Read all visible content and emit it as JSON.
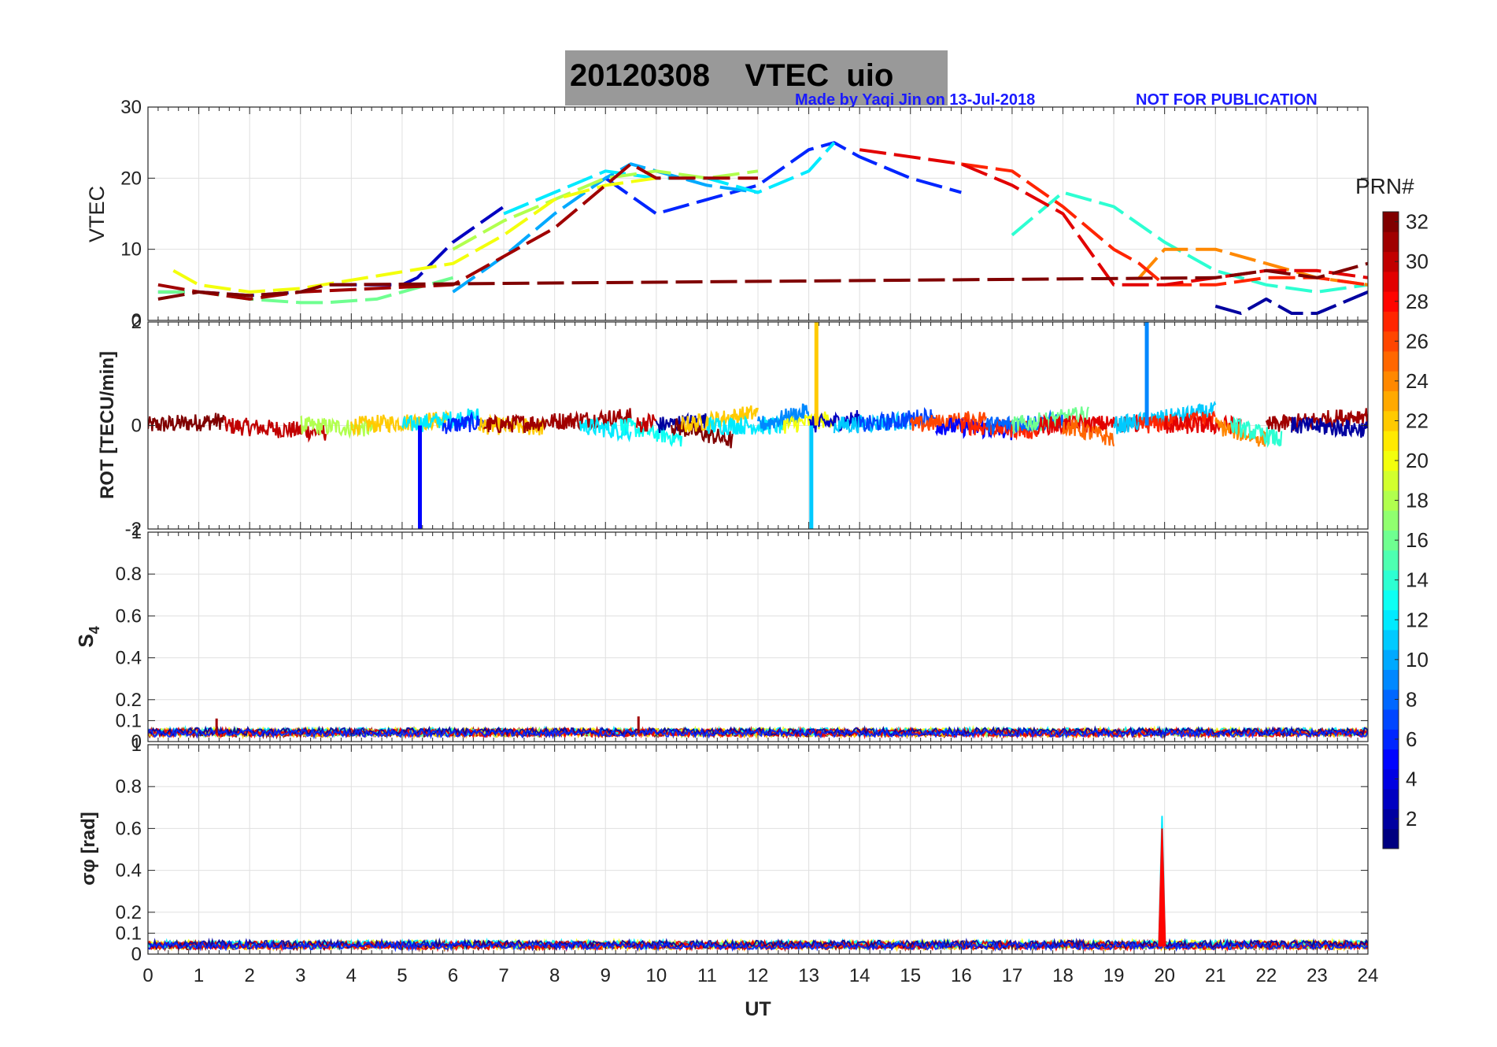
{
  "header": {
    "title": "20120308    VTEC  uio",
    "credit": "Made by Yaqi Jin on 13-Jul-2018",
    "notice": "NOT FOR PUBLICATION"
  },
  "colors": {
    "title_bg": "#999999",
    "credit": "#1a1aff",
    "colormap": "jet"
  },
  "chart_data": [
    {
      "type": "line",
      "panel": "VTEC",
      "ylabel": "VTEC",
      "xlim": [
        0,
        24
      ],
      "ylim": [
        0,
        30
      ],
      "yticks": [
        0,
        10,
        20,
        30
      ],
      "grid": true,
      "series": [
        {
          "prn": 3,
          "x": [
            0.2,
            1,
            2,
            3,
            3.5,
            5,
            5.3,
            6,
            7
          ],
          "y": [
            4,
            4,
            3.5,
            4,
            5,
            5,
            6,
            11,
            16
          ]
        },
        {
          "prn": 6,
          "x": [
            9,
            10,
            11,
            12,
            13,
            13.5,
            14,
            15,
            16
          ],
          "y": [
            20,
            15,
            17,
            19,
            24,
            25,
            23,
            20,
            18
          ]
        },
        {
          "prn": 10,
          "x": [
            6,
            7,
            8,
            9,
            9.5,
            10,
            11,
            12
          ],
          "y": [
            4,
            9,
            15,
            20,
            22,
            21,
            19,
            18
          ]
        },
        {
          "prn": 12,
          "x": [
            7,
            8,
            9,
            10,
            11,
            12,
            13,
            13.5
          ],
          "y": [
            15,
            18,
            21,
            20,
            20,
            18,
            21,
            25
          ]
        },
        {
          "prn": 14,
          "x": [
            17,
            18,
            19,
            20,
            21,
            22,
            23,
            24
          ],
          "y": [
            12,
            18,
            16,
            11,
            7,
            5,
            4,
            5
          ]
        },
        {
          "prn": 16,
          "x": [
            0.2,
            1,
            2,
            3,
            3.5,
            4.5,
            5,
            6
          ],
          "y": [
            4,
            4,
            3,
            2.5,
            2.5,
            3,
            4,
            6
          ]
        },
        {
          "prn": 18,
          "x": [
            6,
            7,
            8,
            9,
            10,
            11,
            12
          ],
          "y": [
            10,
            14,
            17,
            20,
            21,
            20,
            21
          ]
        },
        {
          "prn": 20,
          "x": [
            0.5,
            1,
            2,
            3,
            6,
            7,
            8,
            9,
            10
          ],
          "y": [
            7,
            5,
            4,
            4.5,
            8,
            12,
            17,
            19,
            20
          ]
        },
        {
          "prn": 24,
          "x": [
            19.5,
            20,
            21,
            22,
            23,
            24
          ],
          "y": [
            6,
            10,
            10,
            8,
            6,
            5
          ]
        },
        {
          "prn": 27,
          "x": [
            16,
            17,
            18,
            19,
            19.5,
            20,
            21,
            22,
            23,
            24
          ],
          "y": [
            22,
            21,
            16,
            10,
            8,
            5,
            5,
            6,
            6,
            5
          ]
        },
        {
          "prn": 29,
          "x": [
            14,
            15,
            16,
            17,
            18,
            19,
            20,
            21,
            22,
            23,
            24
          ],
          "y": [
            24,
            23,
            22,
            19,
            15,
            5,
            5,
            6,
            7,
            7,
            6
          ]
        },
        {
          "prn": 31,
          "x": [
            0.2,
            1,
            2,
            3,
            6,
            7,
            8,
            9,
            9.5,
            10,
            11,
            12
          ],
          "y": [
            5,
            4,
            3,
            4,
            5,
            9,
            13,
            19,
            22,
            20,
            20,
            20
          ]
        },
        {
          "prn": 32,
          "x": [
            0.2,
            1,
            2,
            3,
            3.5,
            21,
            22,
            23,
            24
          ],
          "y": [
            3,
            4,
            3.5,
            4,
            5,
            6,
            7,
            6,
            8
          ]
        },
        {
          "prn": 2,
          "x": [
            21,
            21.5,
            22,
            22.5,
            23,
            24
          ],
          "y": [
            2,
            1,
            3,
            1,
            1,
            4
          ]
        }
      ]
    },
    {
      "type": "line",
      "panel": "ROT",
      "ylabel": "ROT [TECU/min]",
      "xlim": [
        0,
        24
      ],
      "ylim": [
        -2,
        2
      ],
      "yticks": [
        -2,
        0,
        2
      ],
      "grid": true,
      "spikes": [
        {
          "prn": 5,
          "x": 5.35,
          "y": -2
        },
        {
          "prn": 22,
          "x": 13.15,
          "y": 2
        },
        {
          "prn": 11,
          "x": 13.05,
          "y": -2
        },
        {
          "prn": 9,
          "x": 19.65,
          "y": 2
        }
      ]
    },
    {
      "type": "line",
      "panel": "S4",
      "ylabel": "S",
      "ylabel_sub": "4",
      "xlim": [
        0,
        24
      ],
      "ylim": [
        0,
        1
      ],
      "yticks": [
        0,
        0.1,
        0.2,
        0.4,
        0.6,
        0.8,
        1
      ],
      "grid": true,
      "baseline": 0.04
    },
    {
      "type": "line",
      "panel": "SigmaPhi",
      "ylabel": "σφ [rad]",
      "xlabel": "UT",
      "xlim": [
        0,
        24
      ],
      "ylim": [
        0,
        1
      ],
      "xticks": [
        0,
        1,
        2,
        3,
        4,
        5,
        6,
        7,
        8,
        9,
        10,
        11,
        12,
        13,
        14,
        15,
        16,
        17,
        18,
        19,
        20,
        21,
        22,
        23,
        24
      ],
      "yticks": [
        0,
        0.1,
        0.2,
        0.4,
        0.6,
        0.8,
        1
      ],
      "grid": true,
      "baseline": 0.04,
      "spikes": [
        {
          "prn": 12,
          "x": 19.95,
          "y": 0.66
        },
        {
          "prn": 28,
          "x": 19.95,
          "y": 0.6
        }
      ]
    }
  ],
  "colorbar": {
    "label": "PRN#",
    "range": [
      1,
      32
    ],
    "ticks": [
      2,
      4,
      6,
      8,
      10,
      12,
      14,
      16,
      18,
      20,
      22,
      24,
      26,
      28,
      30,
      32
    ]
  }
}
